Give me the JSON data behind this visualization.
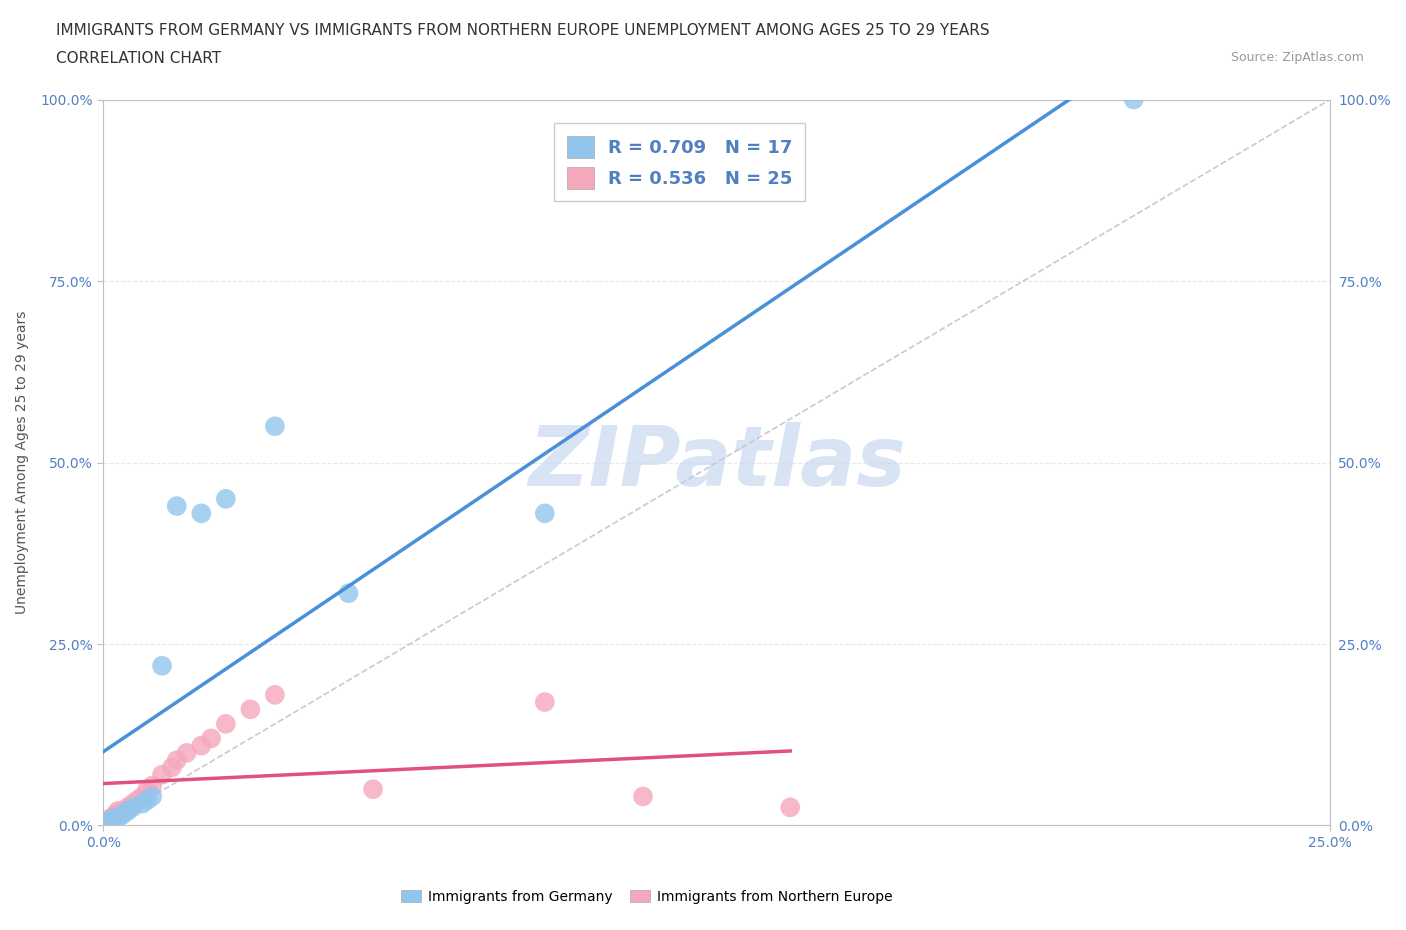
{
  "title_line1": "IMMIGRANTS FROM GERMANY VS IMMIGRANTS FROM NORTHERN EUROPE UNEMPLOYMENT AMONG AGES 25 TO 29 YEARS",
  "title_line2": "CORRELATION CHART",
  "source_text": "Source: ZipAtlas.com",
  "ylabel": "Unemployment Among Ages 25 to 29 years",
  "xlim": [
    0,
    25
  ],
  "ylim": [
    0,
    100
  ],
  "xticks": [
    0,
    25
  ],
  "yticks": [
    0,
    25,
    50,
    75,
    100
  ],
  "germany_scatter_x": [
    0.1,
    0.2,
    0.3,
    0.4,
    0.5,
    0.6,
    0.8,
    0.9,
    1.0,
    1.2,
    1.5,
    2.0,
    2.5,
    3.5,
    5.0,
    9.0,
    21.0
  ],
  "germany_scatter_y": [
    0.5,
    1.0,
    1.0,
    1.5,
    2.0,
    2.5,
    3.0,
    3.5,
    4.0,
    22.0,
    44.0,
    43.0,
    45.0,
    55.0,
    32.0,
    43.0,
    100.0
  ],
  "northern_scatter_x": [
    0.1,
    0.15,
    0.2,
    0.25,
    0.3,
    0.4,
    0.5,
    0.6,
    0.7,
    0.8,
    0.9,
    1.0,
    1.2,
    1.4,
    1.5,
    1.7,
    2.0,
    2.2,
    2.5,
    3.0,
    3.5,
    5.5,
    9.0,
    11.0,
    14.0
  ],
  "northern_scatter_y": [
    0.5,
    1.0,
    1.0,
    1.5,
    2.0,
    2.0,
    2.5,
    3.0,
    3.5,
    4.0,
    5.0,
    5.5,
    7.0,
    8.0,
    9.0,
    10.0,
    11.0,
    12.0,
    14.0,
    16.0,
    18.0,
    5.0,
    17.0,
    4.0,
    2.5
  ],
  "germany_R": 0.709,
  "germany_N": 17,
  "northern_R": 0.536,
  "northern_N": 25,
  "germany_color": "#92C5EC",
  "northern_color": "#F5A8BC",
  "germany_line_color": "#4A90D9",
  "northern_line_color": "#E05080",
  "diagonal_color": "#C8C8D8",
  "watermark_color": "#C8D8F0",
  "background_color": "#FFFFFF",
  "grid_color": "#E8E8E8",
  "tick_color": "#5080C0",
  "title_fontsize": 11,
  "axis_label_fontsize": 10,
  "legend_fontsize": 13,
  "tick_fontsize": 10,
  "source_fontsize": 9
}
